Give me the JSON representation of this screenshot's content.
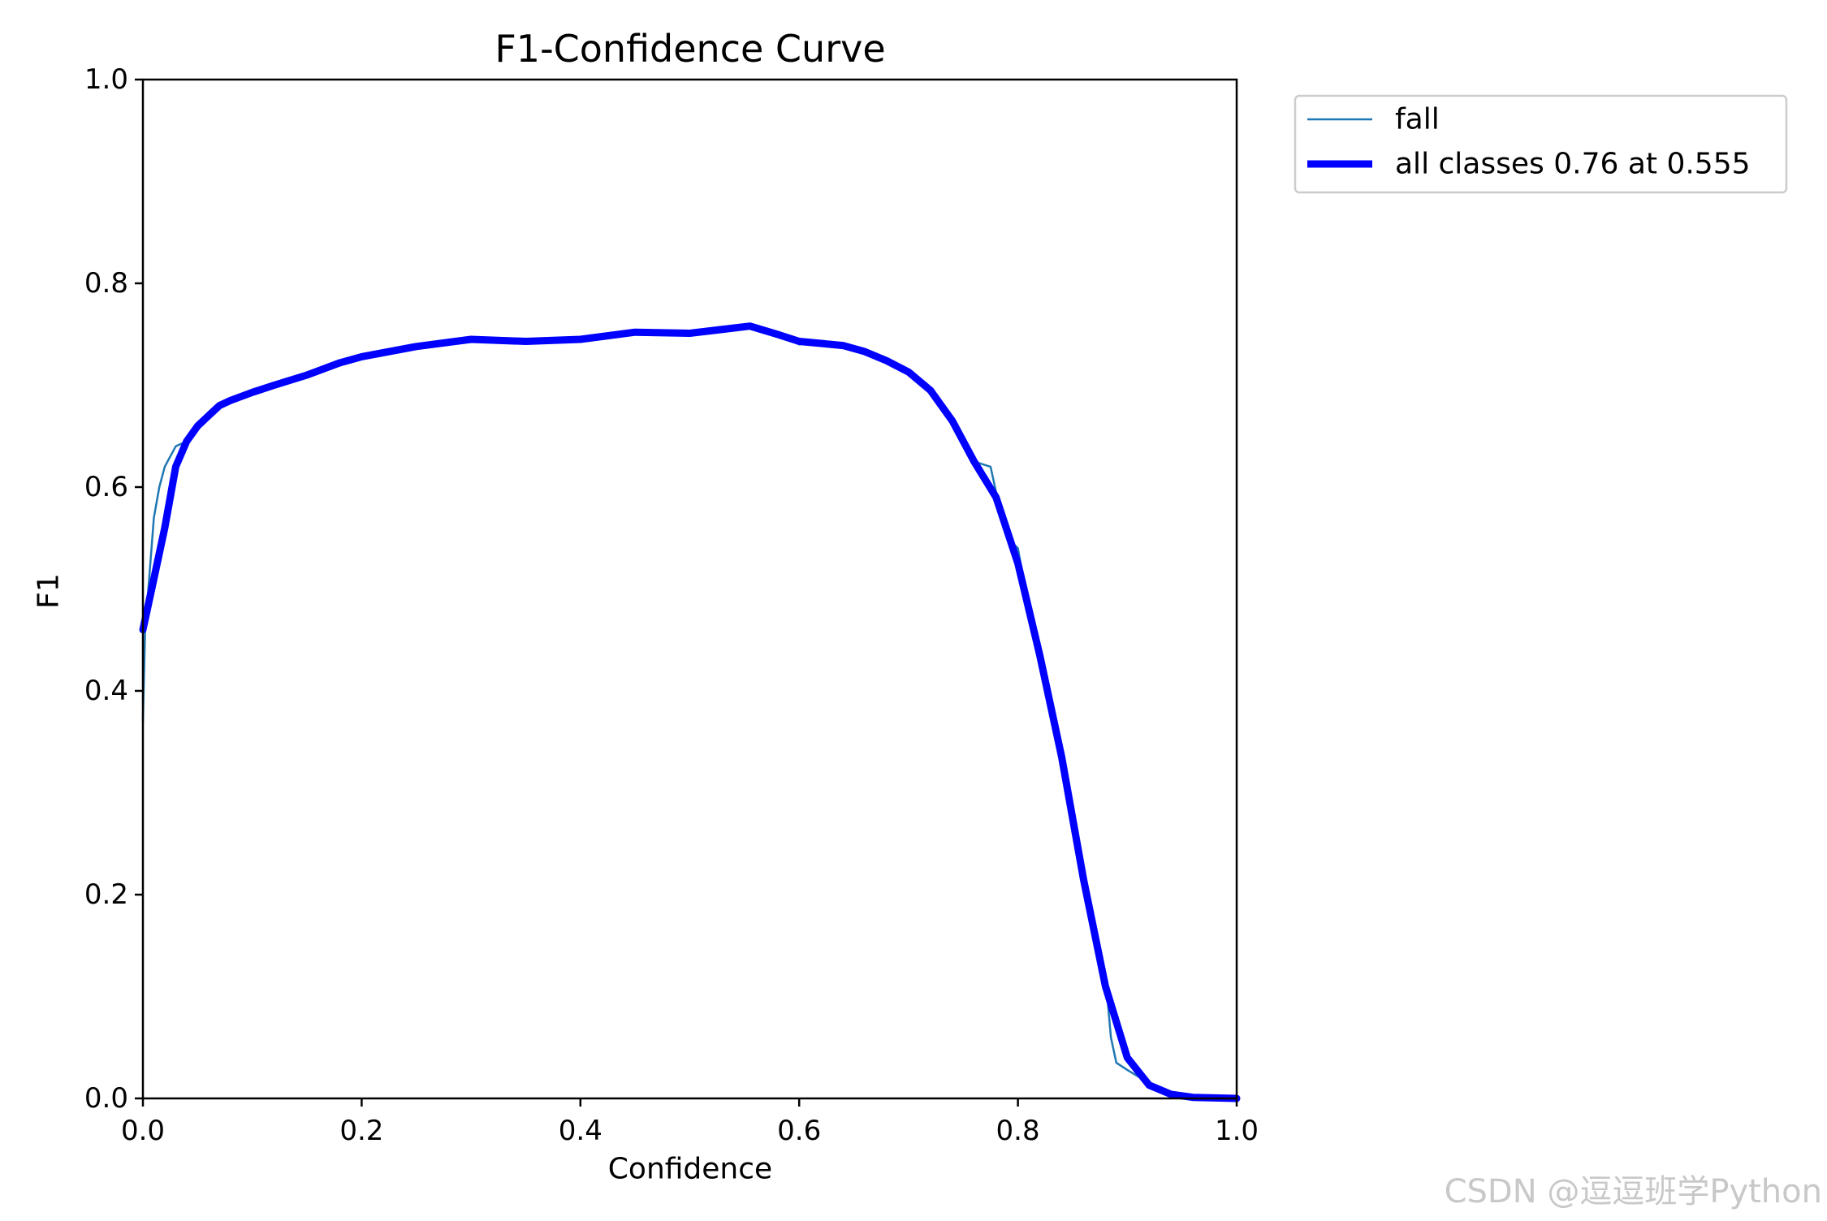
{
  "chart_data": {
    "type": "line",
    "title": "F1-Confidence Curve",
    "xlabel": "Confidence",
    "ylabel": "F1",
    "xlim": [
      0.0,
      1.0
    ],
    "ylim": [
      0.0,
      1.0
    ],
    "xticks": [
      "0.0",
      "0.2",
      "0.4",
      "0.6",
      "0.8",
      "1.0"
    ],
    "yticks": [
      "0.0",
      "0.2",
      "0.4",
      "0.6",
      "0.8",
      "1.0"
    ],
    "grid": false,
    "legend_position": "outside-upper-right",
    "series": [
      {
        "name": "fall",
        "color": "#1f77b4",
        "points": [
          [
            0.0,
            0.37
          ],
          [
            0.002,
            0.46
          ],
          [
            0.005,
            0.5
          ],
          [
            0.01,
            0.57
          ],
          [
            0.015,
            0.6
          ],
          [
            0.02,
            0.62
          ],
          [
            0.03,
            0.64
          ],
          [
            0.04,
            0.645
          ],
          [
            0.05,
            0.66
          ],
          [
            0.06,
            0.67
          ],
          [
            0.07,
            0.68
          ],
          [
            0.08,
            0.685
          ],
          [
            0.1,
            0.693
          ],
          [
            0.12,
            0.7
          ],
          [
            0.15,
            0.71
          ],
          [
            0.18,
            0.722
          ],
          [
            0.2,
            0.728
          ],
          [
            0.25,
            0.738
          ],
          [
            0.3,
            0.745
          ],
          [
            0.35,
            0.743
          ],
          [
            0.4,
            0.745
          ],
          [
            0.45,
            0.752
          ],
          [
            0.5,
            0.751
          ],
          [
            0.55,
            0.759
          ],
          [
            0.58,
            0.75
          ],
          [
            0.6,
            0.74
          ],
          [
            0.62,
            0.742
          ],
          [
            0.64,
            0.74
          ],
          [
            0.66,
            0.734
          ],
          [
            0.68,
            0.725
          ],
          [
            0.7,
            0.714
          ],
          [
            0.72,
            0.695
          ],
          [
            0.74,
            0.665
          ],
          [
            0.76,
            0.625
          ],
          [
            0.775,
            0.62
          ],
          [
            0.78,
            0.595
          ],
          [
            0.795,
            0.545
          ],
          [
            0.8,
            0.54
          ],
          [
            0.81,
            0.48
          ],
          [
            0.82,
            0.43
          ],
          [
            0.84,
            0.33
          ],
          [
            0.86,
            0.21
          ],
          [
            0.88,
            0.12
          ],
          [
            0.885,
            0.06
          ],
          [
            0.89,
            0.035
          ],
          [
            0.9,
            0.028
          ],
          [
            0.92,
            0.015
          ],
          [
            0.94,
            0.005
          ],
          [
            0.96,
            0.001
          ],
          [
            1.0,
            0.0
          ]
        ]
      },
      {
        "name": "all classes 0.76 at 0.555",
        "color": "#0000ff",
        "points": [
          [
            0.0,
            0.46
          ],
          [
            0.01,
            0.51
          ],
          [
            0.02,
            0.56
          ],
          [
            0.03,
            0.62
          ],
          [
            0.04,
            0.645
          ],
          [
            0.05,
            0.66
          ],
          [
            0.06,
            0.67
          ],
          [
            0.07,
            0.68
          ],
          [
            0.08,
            0.685
          ],
          [
            0.1,
            0.693
          ],
          [
            0.12,
            0.7
          ],
          [
            0.15,
            0.71
          ],
          [
            0.18,
            0.722
          ],
          [
            0.2,
            0.728
          ],
          [
            0.25,
            0.738
          ],
          [
            0.3,
            0.745
          ],
          [
            0.35,
            0.743
          ],
          [
            0.4,
            0.745
          ],
          [
            0.45,
            0.752
          ],
          [
            0.5,
            0.751
          ],
          [
            0.555,
            0.758
          ],
          [
            0.58,
            0.75
          ],
          [
            0.6,
            0.743
          ],
          [
            0.62,
            0.741
          ],
          [
            0.64,
            0.739
          ],
          [
            0.66,
            0.733
          ],
          [
            0.68,
            0.724
          ],
          [
            0.7,
            0.713
          ],
          [
            0.72,
            0.695
          ],
          [
            0.74,
            0.665
          ],
          [
            0.76,
            0.625
          ],
          [
            0.78,
            0.59
          ],
          [
            0.8,
            0.525
          ],
          [
            0.82,
            0.435
          ],
          [
            0.84,
            0.335
          ],
          [
            0.86,
            0.215
          ],
          [
            0.88,
            0.11
          ],
          [
            0.9,
            0.04
          ],
          [
            0.92,
            0.013
          ],
          [
            0.94,
            0.004
          ],
          [
            0.96,
            0.001
          ],
          [
            1.0,
            0.0
          ]
        ]
      }
    ]
  },
  "watermark": "CSDN @逗逗班学Python"
}
